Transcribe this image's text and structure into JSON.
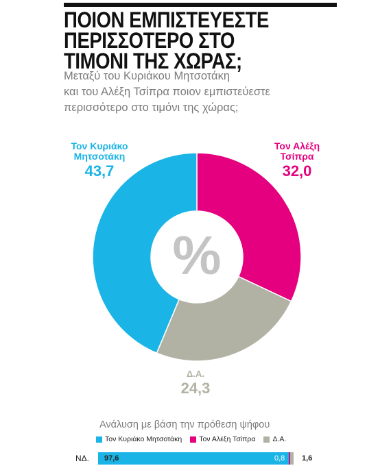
{
  "title_lines": [
    "ΠΟΙΟΝ ΕΜΠΙΣΤΕΥΕΣΤΕ",
    "ΠΕΡΙΣΣΟΤΕΡΟ ΣΤΟ",
    "ΤΙΜΟΝΙ ΤΗΣ ΧΩΡΑΣ;"
  ],
  "subtitle_lines": [
    "Μεταξύ του Κυριάκου Μητσοτάκη",
    "και του Αλέξη Τσίπρα ποιον εμπιστεύεστε",
    "περισσότερο στο τιμόνι της χώρας;"
  ],
  "center_symbol": "%",
  "chart_data": [
    {
      "type": "pie",
      "donut": true,
      "slices": [
        {
          "label": "Τον Αλέξη Τσίπρα",
          "label_lines": [
            "Τον Αλέξη",
            "Τσίπρα"
          ],
          "value": 32.0,
          "value_text": "32,0",
          "color": "#e4007e"
        },
        {
          "label": "Δ.Α.",
          "label_lines": [
            "Δ.Α."
          ],
          "value": 24.3,
          "value_text": "24,3",
          "color": "#b2b2a4"
        },
        {
          "label": "Τον Κυριάκο Μητσοτάκη",
          "label_lines": [
            "Τον Κυριάκο",
            "Μητσοτάκη"
          ],
          "value": 43.7,
          "value_text": "43,7",
          "color": "#1ab4e6"
        }
      ]
    },
    {
      "type": "bar",
      "stacked": true,
      "title": "Ανάλυση με βάση την πρόθεση ψήφου",
      "legend": [
        {
          "name": "Τον Κυριάκο Μητσοτάκη",
          "color": "#1ab4e6"
        },
        {
          "name": "Τον Αλέξη Τσίπρα",
          "color": "#e4007e"
        },
        {
          "name": "Δ.Α.",
          "color": "#b2b2a4"
        }
      ],
      "categories": [
        "ΝΔ."
      ],
      "series": [
        {
          "name": "Τον Κυριάκο Μητσοτάκη",
          "values": [
            97.6
          ],
          "value_text": "97,6",
          "color": "#1ab4e6"
        },
        {
          "name": "Τον Αλέξη Τσίπρα",
          "values": [
            0.8
          ],
          "value_text": "0,8",
          "color": "#e4007e"
        },
        {
          "name": "Δ.Α.",
          "values": [
            1.6
          ],
          "value_text": "1,6",
          "color": "#b2b2a4"
        }
      ]
    }
  ]
}
